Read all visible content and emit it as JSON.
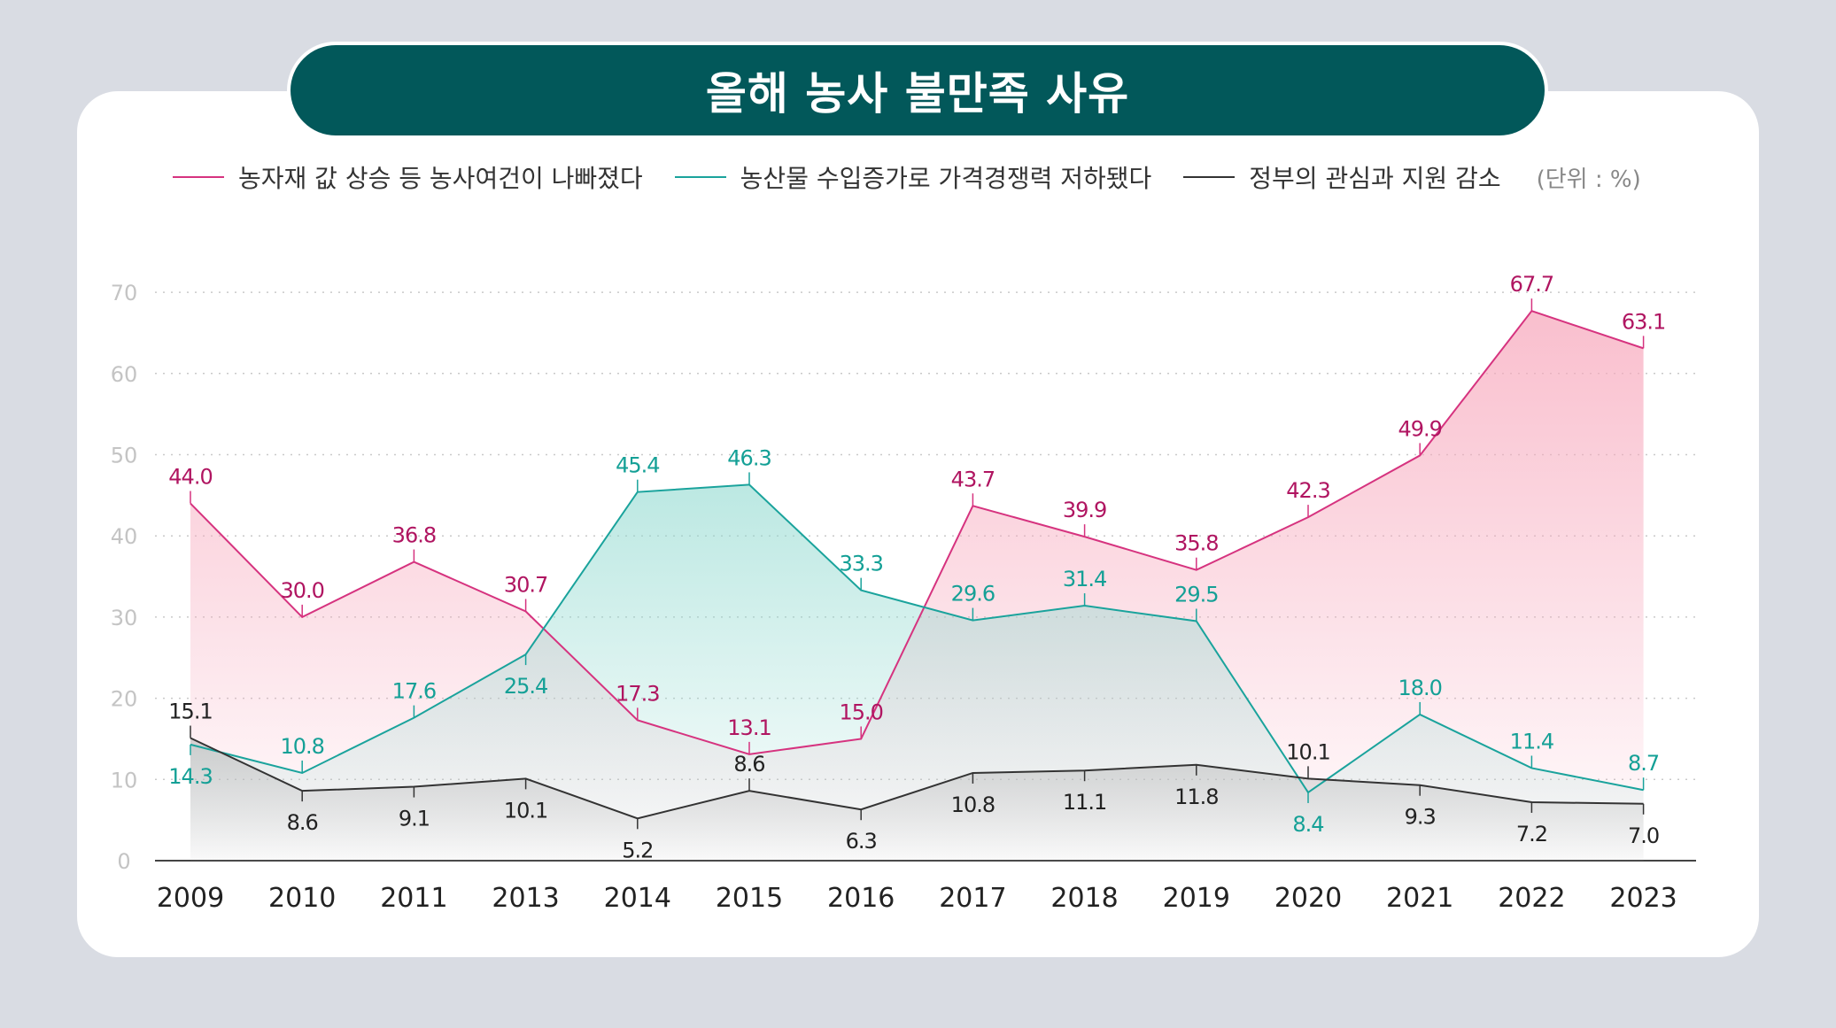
{
  "title": "올해 농사 불만족 사유",
  "legend": {
    "items": [
      {
        "label": "농자재 값 상승 등 농사여건이 나빠졌다",
        "color": "#d6337f"
      },
      {
        "label": "농산물 수입증가로 가격경쟁력 저하됐다",
        "color": "#1aa39c"
      },
      {
        "label": "정부의 관심과 지원 감소",
        "color": "#333333"
      }
    ],
    "unit": "(단위 : %)"
  },
  "chart_data": {
    "type": "area",
    "categories": [
      "2009",
      "2010",
      "2011",
      "2013",
      "2014",
      "2015",
      "2016",
      "2017",
      "2018",
      "2019",
      "2020",
      "2021",
      "2022",
      "2023"
    ],
    "series": [
      {
        "name": "농자재 값 상승 등 농사여건이 나빠졌다",
        "color": "#d6337f",
        "labelColor": "#b01561",
        "fill": "#f7a9bd",
        "values": [
          44.0,
          30.0,
          36.8,
          30.7,
          17.3,
          13.1,
          15.0,
          43.7,
          39.9,
          35.8,
          42.3,
          49.9,
          67.7,
          63.1
        ],
        "labels": [
          "44.0",
          "30.0",
          "36.8",
          "30.7",
          "17.3",
          "13.1",
          "15.0",
          "43.7",
          "39.9",
          "35.8",
          "42.3",
          "49.9",
          "67.7",
          "63.1"
        ]
      },
      {
        "name": "농산물 수입증가로 가격경쟁력 저하됐다",
        "color": "#1aa39c",
        "labelColor": "#14a096",
        "fill": "#8fd9cf",
        "values": [
          14.3,
          10.8,
          17.6,
          25.4,
          45.4,
          46.3,
          33.3,
          29.6,
          31.4,
          29.5,
          8.4,
          18.0,
          11.4,
          8.7
        ],
        "labels": [
          "14.3",
          "10.8",
          "17.6",
          "25.4",
          "45.4",
          "46.3",
          "33.3",
          "29.6",
          "31.4",
          "29.5",
          "8.4",
          "18.0",
          "11.4",
          "8.7"
        ]
      },
      {
        "name": "정부의 관심과 지원 감소",
        "color": "#333333",
        "labelColor": "#222222",
        "fill": "#b9b9b9",
        "values": [
          15.1,
          8.6,
          9.1,
          10.1,
          5.2,
          8.6,
          6.3,
          10.8,
          11.1,
          11.8,
          10.1,
          9.3,
          7.2,
          7.0
        ],
        "labels": [
          "15.1",
          "8.6",
          "9.1",
          "10.1",
          "5.2",
          "8.6",
          "6.3",
          "10.8",
          "11.1",
          "11.8",
          "10.1",
          "9.3",
          "7.2",
          "7.0"
        ]
      }
    ],
    "yticks": [
      "0",
      "10",
      "20",
      "30",
      "40",
      "50",
      "60",
      "70"
    ],
    "ylim": [
      0,
      70
    ],
    "grid": true
  }
}
